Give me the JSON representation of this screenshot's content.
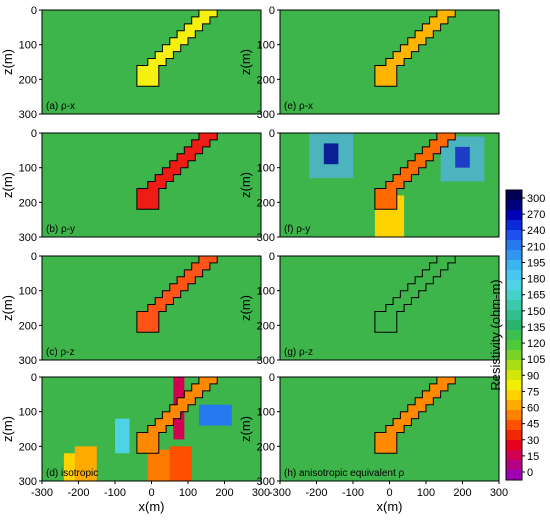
{
  "chart_data": {
    "type": "heatmap",
    "colorbar": {
      "label": "Resistivity (ohm-m)",
      "ticks": [
        "300",
        "270",
        "240",
        "210",
        "195",
        "180",
        "165",
        "150",
        "135",
        "120",
        "105",
        "90",
        "75",
        "60",
        "45",
        "30",
        "15",
        "0"
      ],
      "colors": [
        "#000050",
        "#00007a",
        "#0000b4",
        "#0a28dc",
        "#1e50f0",
        "#2878f0",
        "#3296f0",
        "#3cb4f0",
        "#46c8f0",
        "#50d2e6",
        "#46d2c8",
        "#3cc8aa",
        "#32be8c",
        "#28b46e",
        "#3cbe50",
        "#50c83c",
        "#78d228",
        "#aade14",
        "#d2e60a",
        "#f0f000",
        "#ffd200",
        "#ffaa00",
        "#ff8200",
        "#ff5000",
        "#f02800",
        "#e6001e",
        "#d20050",
        "#b40082",
        "#a000b4"
      ]
    },
    "x_axis": {
      "label": "x(m)",
      "ticks": [
        "-300",
        "-200",
        "-100",
        "0",
        "100",
        "200",
        "300"
      ],
      "range": [
        -300,
        300
      ]
    },
    "y_axis": {
      "label": "z(m)",
      "ticks": [
        "0",
        "100",
        "200",
        "300"
      ],
      "range": [
        0,
        300
      ]
    },
    "panels": [
      {
        "label": "(a) ρ-x",
        "column": 0,
        "row": 0,
        "background": "#3db54a",
        "body": "#f5f00f"
      },
      {
        "label": "(b) ρ-y",
        "column": 0,
        "row": 1,
        "background": "#3db54a",
        "body": "#ee1c14"
      },
      {
        "label": "(c) ρ-z",
        "column": 0,
        "row": 2,
        "background": "#3db54a",
        "body": "#ff5418"
      },
      {
        "label": "(d) isotropic",
        "column": 0,
        "row": 3,
        "background": "#3db54a",
        "body": "#ff8800"
      },
      {
        "label": "(e) ρ-x",
        "column": 1,
        "row": 0,
        "background": "#3db54a",
        "body": "#ffb400"
      },
      {
        "label": "(f) ρ-y",
        "column": 1,
        "row": 1,
        "background": "#3db54a",
        "body": "#ff6a00"
      },
      {
        "label": "(g) ρ-z",
        "column": 1,
        "row": 2,
        "background": "#3db54a",
        "body": "#3db54a"
      },
      {
        "label": "(h) anisotropic equivalent ρ",
        "column": 1,
        "row": 3,
        "background": "#3db54a",
        "body": "#ff8a00"
      }
    ]
  }
}
